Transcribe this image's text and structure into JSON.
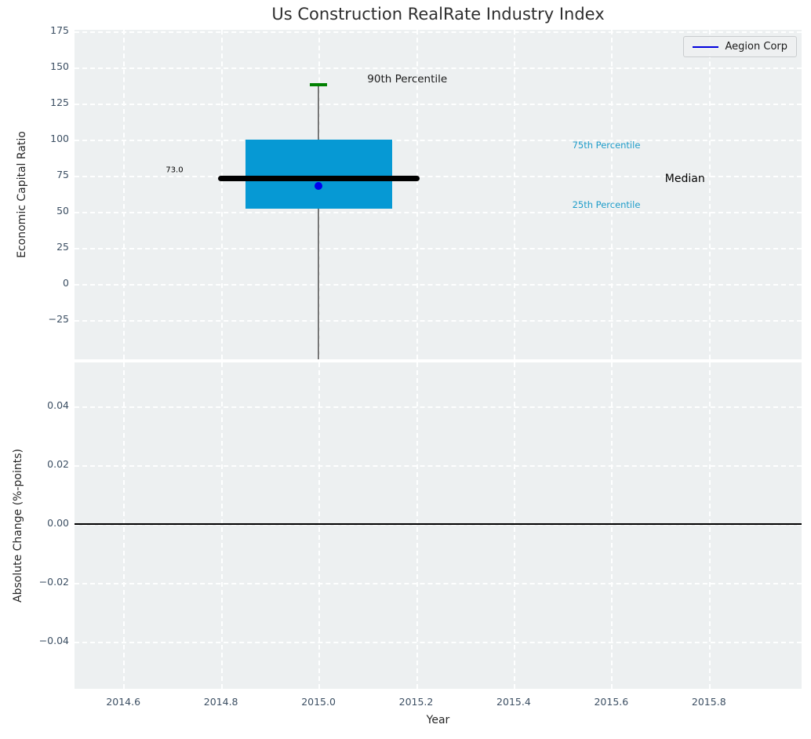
{
  "chart_data": [
    {
      "type": "box",
      "title": "Us Construction RealRate Industry Index",
      "ylabel": "Economic Capital Ratio",
      "xlim": [
        2014.5,
        2015.99
      ],
      "ylim": [
        -52,
        176
      ],
      "yticks": [
        175,
        150,
        125,
        100,
        75,
        50,
        25,
        0,
        -25
      ],
      "ytick_labels": [
        "175",
        "150",
        "125",
        "100",
        "75",
        "50",
        "25",
        "0",
        "−25"
      ],
      "xticks": [
        2014.6,
        2014.8,
        2015.0,
        2015.2,
        2015.4,
        2015.6,
        2015.8
      ],
      "xtick_labels": [
        "2014.6",
        "2014.8",
        "2015.0",
        "2015.2",
        "2015.4",
        "2015.6",
        "2015.8"
      ],
      "grid": "white-dashed-on-light-gray",
      "legend": {
        "label": "Aegion Corp",
        "line_color": "#0000dd",
        "position": "upper right"
      },
      "box": {
        "x": 2015.0,
        "q1": 52,
        "median": 73.0,
        "q3": 100,
        "p90": 138,
        "whisker_low_clipped_below_axis": true,
        "box_left": 2014.85,
        "box_right": 2015.151,
        "median_left": 2014.794,
        "median_right": 2015.207,
        "cap_left": 2014.982,
        "cap_right": 2015.017,
        "box_color": "#0699d4",
        "median_color": "#000000",
        "cap_color": "#008000",
        "whisker_color": "#777777",
        "company_point": {
          "label": "Aegion Corp",
          "x": 2015.0,
          "y": 68,
          "color": "#0000ee"
        }
      },
      "annotations": [
        {
          "text": "73.0",
          "x": 2014.687,
          "y": 79,
          "color": "#000000",
          "size": 10
        },
        {
          "text": "90th Percentile",
          "x": 2015.1,
          "y": 142,
          "color": "#1a1a1a",
          "size": 13.5
        },
        {
          "text": "75th Percentile",
          "x": 2015.52,
          "y": 96,
          "color": "#1e9cc9",
          "size": 11.5
        },
        {
          "text": "Median",
          "x": 2015.71,
          "y": 73,
          "color": "#000000",
          "size": 14
        },
        {
          "text": "25th Percentile",
          "x": 2015.52,
          "y": 55,
          "color": "#1e9cc9",
          "size": 11.5
        }
      ]
    },
    {
      "type": "line",
      "ylabel": "Absolute Change (%-points)",
      "xlabel": "Year",
      "xlim": [
        2014.5,
        2015.99
      ],
      "ylim": [
        -0.056,
        0.055
      ],
      "yticks": [
        0.04,
        0.02,
        0.0,
        -0.02,
        -0.04
      ],
      "ytick_labels": [
        "0.04",
        "0.02",
        "0.00",
        "−0.02",
        "−0.04"
      ],
      "xticks": [
        2014.6,
        2014.8,
        2015.0,
        2015.2,
        2015.4,
        2015.6,
        2015.8
      ],
      "xtick_labels": [
        "2014.6",
        "2014.8",
        "2015.0",
        "2015.2",
        "2015.4",
        "2015.6",
        "2015.8"
      ],
      "grid": "white-dashed-on-light-gray",
      "zero_line": 0.0,
      "series": []
    }
  ]
}
